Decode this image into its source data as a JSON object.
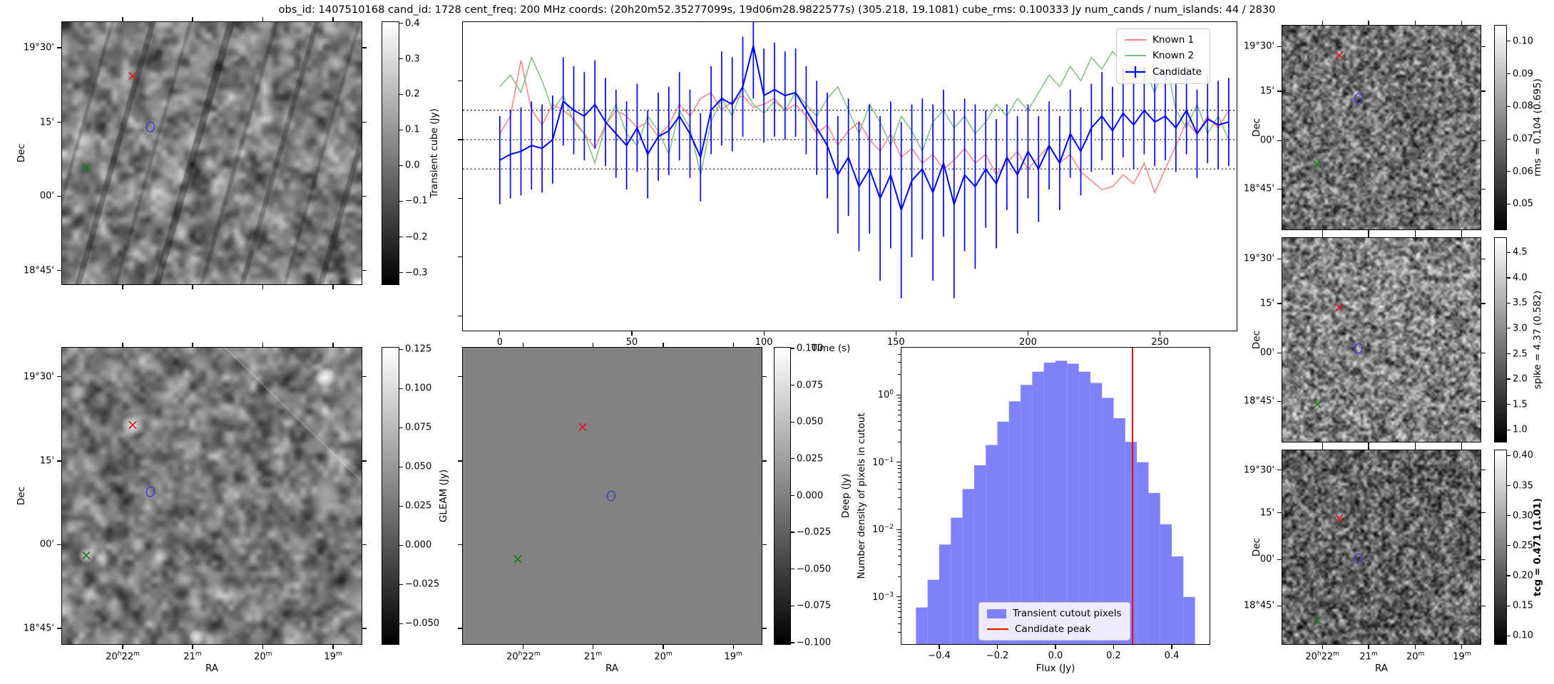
{
  "title": "obs_id: 1407510168 cand_id: 1728 cent_freq: 200 MHz coords: (20h20m52.35277099s, 19d06m28.9822577s) (305.218, 19.1081) cube_rms: 0.100333 Jy num_cands / num_islands: 44 / 2830",
  "axis_labels": {
    "dec": "Dec",
    "ra": "RA",
    "time": "Time (s)",
    "flux": "Flux (Jy)",
    "hist_y": "Number density of pixels in cutout"
  },
  "dec_tick_labels": [
    "19°30'",
    "15'",
    "00'",
    "18°45'"
  ],
  "ra_tick_labels": [
    "20h22m",
    "21m",
    "20m",
    "19m"
  ],
  "colorbars": {
    "transient": {
      "label": "Transient cube (Jy)",
      "ticks": [
        "0.4",
        "0.3",
        "0.2",
        "0.1",
        "0.0",
        "−0.1",
        "−0.2",
        "−0.3"
      ]
    },
    "gleam": {
      "label": "GLEAM (Jy)",
      "ticks": [
        "0.125",
        "0.100",
        "0.075",
        "0.050",
        "0.025",
        "0.000",
        "−0.025",
        "−0.050"
      ]
    },
    "deep": {
      "label": "Deep (Jy)",
      "ticks": [
        "0.100",
        "0.075",
        "0.050",
        "0.025",
        "0.000",
        "−0.025",
        "−0.050",
        "−0.075",
        "−0.100"
      ]
    },
    "rms": {
      "label": "rms = 0.104 (0.695)",
      "ticks": [
        "0.10",
        "0.09",
        "0.08",
        "0.07",
        "0.06",
        "0.05"
      ]
    },
    "spike": {
      "label": "spike = 4.37 (0.582)",
      "ticks": [
        "4.5",
        "4.0",
        "3.5",
        "3.0",
        "2.5",
        "2.0",
        "1.5",
        "1.0"
      ]
    },
    "tcg": {
      "label": "tcg = 0.471 (1.01)",
      "ticks": [
        "0.40",
        "0.35",
        "0.30",
        "0.25",
        "0.20",
        "0.15",
        "0.10"
      ]
    }
  },
  "markers": {
    "pA": [
      {
        "shape": "x",
        "color": "#d62020",
        "fx": 0.237,
        "fy": 0.208,
        "name": "known1-x-marker"
      },
      {
        "shape": "ring",
        "color": "#4040cc",
        "fx": 0.296,
        "fy": 0.405,
        "name": "candidate-ring-marker"
      },
      {
        "shape": "x",
        "color": "#1f7a1f",
        "fx": 0.083,
        "fy": 0.557,
        "name": "known2-x-marker"
      }
    ],
    "pB": [
      {
        "shape": "x",
        "color": "#d62020",
        "fx": 0.237,
        "fy": 0.263,
        "name": "known1-x-marker"
      },
      {
        "shape": "ring",
        "color": "#4040cc",
        "fx": 0.296,
        "fy": 0.49,
        "name": "candidate-ring-marker"
      },
      {
        "shape": "x",
        "color": "#1f7a1f",
        "fx": 0.083,
        "fy": 0.701,
        "name": "known2-x-marker"
      }
    ],
    "pD": [
      {
        "shape": "x",
        "color": "#d62020",
        "fx": 0.402,
        "fy": 0.271,
        "name": "known1-x-marker"
      },
      {
        "shape": "ring",
        "color": "#4040cc",
        "fx": 0.497,
        "fy": 0.504,
        "name": "candidate-ring-marker"
      },
      {
        "shape": "x",
        "color": "#1f7a1f",
        "fx": 0.185,
        "fy": 0.713,
        "name": "known2-x-marker"
      }
    ],
    "pR1": [
      {
        "shape": "x",
        "color": "#d62020",
        "fx": 0.29,
        "fy": 0.15,
        "name": "known1-x-marker"
      },
      {
        "shape": "ring",
        "color": "#4040cc",
        "fx": 0.385,
        "fy": 0.365,
        "name": "candidate-ring-marker"
      },
      {
        "shape": "x",
        "color": "#1f7a1f",
        "fx": 0.18,
        "fy": 0.68,
        "name": "known2-x-marker"
      }
    ],
    "pR2": [
      {
        "shape": "x",
        "color": "#d62020",
        "fx": 0.29,
        "fy": 0.345,
        "name": "known1-x-marker"
      },
      {
        "shape": "ring",
        "color": "#4040cc",
        "fx": 0.385,
        "fy": 0.55,
        "name": "candidate-ring-marker"
      },
      {
        "shape": "x",
        "color": "#1f7a1f",
        "fx": 0.18,
        "fy": 0.815,
        "name": "known2-x-marker"
      }
    ],
    "pR3": [
      {
        "shape": "x",
        "color": "#d62020",
        "fx": 0.29,
        "fy": 0.355,
        "name": "known1-x-marker"
      },
      {
        "shape": "ring",
        "color": "#4040cc",
        "fx": 0.385,
        "fy": 0.565,
        "name": "candidate-ring-marker"
      },
      {
        "shape": "x",
        "color": "#1f7a1f",
        "fx": 0.18,
        "fy": 0.875,
        "name": "known2-x-marker"
      }
    ]
  },
  "chart_data": [
    {
      "type": "line",
      "title": "",
      "xlabel": "Time (s)",
      "ylabel": "",
      "xlim": [
        -14,
        279
      ],
      "ylim": [
        -0.65,
        0.4
      ],
      "xticks": [
        0,
        50,
        100,
        150,
        200,
        250
      ],
      "hlines": [
        0.1,
        0.0,
        -0.1
      ],
      "legend_position": "upper right",
      "x": [
        0,
        4,
        8,
        12,
        16,
        20,
        24,
        28,
        32,
        36,
        40,
        44,
        48,
        52,
        56,
        60,
        64,
        68,
        72,
        76,
        80,
        84,
        88,
        92,
        96,
        100,
        104,
        108,
        112,
        116,
        120,
        124,
        128,
        132,
        136,
        140,
        144,
        148,
        152,
        156,
        160,
        164,
        168,
        172,
        176,
        180,
        184,
        188,
        192,
        196,
        200,
        204,
        208,
        212,
        216,
        220,
        224,
        228,
        232,
        236,
        240,
        244,
        248,
        252,
        256,
        260,
        264,
        268,
        272,
        276
      ],
      "series": [
        {
          "name": "Known 1",
          "color": "#ff7f7f",
          "values": [
            0.02,
            0.08,
            0.27,
            0.1,
            0.05,
            0.12,
            0.1,
            0.07,
            0.02,
            -0.03,
            0.05,
            0.1,
            0.08,
            0.04,
            0.06,
            0.01,
            0.05,
            0.12,
            0.08,
            0.14,
            0.16,
            0.1,
            0.13,
            0.15,
            0.11,
            0.12,
            0.14,
            0.1,
            0.12,
            0.08,
            0.02,
            0.05,
            -0.02,
            0.03,
            0.06,
            0.0,
            -0.04,
            0.02,
            -0.06,
            -0.03,
            -0.08,
            -0.05,
            -0.1,
            -0.07,
            -0.03,
            -0.08,
            -0.05,
            -0.12,
            -0.08,
            -0.04,
            -0.1,
            -0.06,
            -0.02,
            -0.08,
            -0.05,
            -0.11,
            -0.14,
            -0.17,
            -0.16,
            -0.12,
            -0.15,
            -0.08,
            -0.18,
            -0.1,
            -0.02,
            0.06,
            0.02,
            0.08,
            0.04,
            0.1
          ]
        },
        {
          "name": "Known 2",
          "color": "#7fbf7f",
          "values": [
            0.18,
            0.22,
            0.16,
            0.28,
            0.2,
            0.1,
            0.15,
            0.06,
            0.02,
            -0.08,
            0.05,
            0.12,
            0.02,
            -0.02,
            0.08,
            0.03,
            -0.05,
            0.1,
            0.04,
            -0.12,
            0.06,
            0.14,
            0.08,
            0.18,
            0.12,
            0.09,
            0.13,
            0.1,
            0.16,
            0.12,
            0.08,
            0.14,
            0.18,
            0.1,
            0.02,
            0.12,
            0.06,
            -0.02,
            0.08,
            0.03,
            -0.04,
            0.06,
            0.1,
            0.04,
            0.08,
            0.02,
            0.06,
            0.12,
            0.08,
            0.14,
            0.1,
            0.16,
            0.22,
            0.18,
            0.25,
            0.2,
            0.28,
            0.24,
            0.3,
            0.26,
            0.2,
            0.24,
            0.16,
            0.28,
            0.1,
            0.04,
            0.12,
            0.02,
            0.08,
            0.0
          ]
        },
        {
          "name": "Candidate",
          "color": "#0000ff",
          "values": [
            -0.07,
            -0.05,
            -0.04,
            -0.02,
            -0.03,
            0.0,
            0.13,
            0.1,
            0.08,
            0.12,
            0.06,
            0.02,
            -0.02,
            0.04,
            -0.05,
            0.01,
            0.03,
            0.08,
            0.02,
            -0.06,
            0.1,
            0.14,
            0.12,
            0.18,
            0.32,
            0.15,
            0.17,
            0.15,
            0.16,
            0.1,
            0.04,
            -0.02,
            -0.12,
            -0.06,
            -0.16,
            -0.1,
            -0.2,
            -0.12,
            -0.24,
            -0.14,
            -0.1,
            -0.18,
            -0.08,
            -0.22,
            -0.12,
            -0.16,
            -0.1,
            -0.15,
            -0.06,
            -0.12,
            -0.04,
            -0.1,
            -0.02,
            -0.08,
            0.02,
            -0.04,
            0.04,
            0.08,
            0.03,
            0.09,
            0.05,
            0.1,
            0.06,
            0.08,
            0.04,
            0.1,
            0.02,
            0.07,
            0.05,
            0.06
          ],
          "yerr": [
            0.15,
            0.15,
            0.15,
            0.15,
            0.15,
            0.15,
            0.15,
            0.15,
            0.15,
            0.15,
            0.15,
            0.15,
            0.15,
            0.15,
            0.15,
            0.15,
            0.15,
            0.15,
            0.15,
            0.15,
            0.15,
            0.16,
            0.16,
            0.17,
            0.18,
            0.16,
            0.16,
            0.15,
            0.15,
            0.15,
            0.16,
            0.18,
            0.2,
            0.2,
            0.22,
            0.22,
            0.28,
            0.25,
            0.3,
            0.26,
            0.24,
            0.3,
            0.25,
            0.32,
            0.26,
            0.28,
            0.2,
            0.22,
            0.18,
            0.2,
            0.16,
            0.18,
            0.15,
            0.16,
            0.15,
            0.15,
            0.15,
            0.15,
            0.15,
            0.15,
            0.15,
            0.15,
            0.15,
            0.15,
            0.15,
            0.15,
            0.15,
            0.15,
            0.15,
            0.15
          ]
        }
      ]
    },
    {
      "type": "bar",
      "xlabel": "Flux (Jy)",
      "ylabel": "Number density of pixels in cutout",
      "yscale": "log",
      "xlim": [
        -0.53,
        0.53
      ],
      "ylim": [
        0.0002,
        5
      ],
      "xticks": [
        -0.4,
        -0.2,
        0.0,
        0.2,
        0.4
      ],
      "xtick_labels": [
        "−0.4",
        "−0.2",
        "0.0",
        "0.2",
        "0.4"
      ],
      "ytick_values": [
        1,
        0.1,
        0.01,
        0.001
      ],
      "ytick_labels": [
        "10^0",
        "10^−1",
        "10^−2",
        "10^−3"
      ],
      "bin_width": 0.04,
      "bin_centers": [
        -0.46,
        -0.42,
        -0.38,
        -0.34,
        -0.3,
        -0.26,
        -0.22,
        -0.18,
        -0.14,
        -0.1,
        -0.06,
        -0.02,
        0.02,
        0.06,
        0.1,
        0.14,
        0.18,
        0.22,
        0.26,
        0.3,
        0.34,
        0.38,
        0.42,
        0.46
      ],
      "values": [
        0.0007,
        0.0018,
        0.006,
        0.015,
        0.04,
        0.09,
        0.18,
        0.4,
        0.8,
        1.4,
        2.2,
        3.0,
        3.2,
        2.9,
        2.2,
        1.5,
        0.9,
        0.45,
        0.2,
        0.1,
        0.035,
        0.012,
        0.004,
        0.001
      ],
      "bar_color": "#8080f8",
      "bar_label": "Transient cutout pixels",
      "vline": {
        "label": "Candidate peak",
        "x": 0.265,
        "color": "#ee0000"
      },
      "legend_position": "lower center"
    }
  ]
}
